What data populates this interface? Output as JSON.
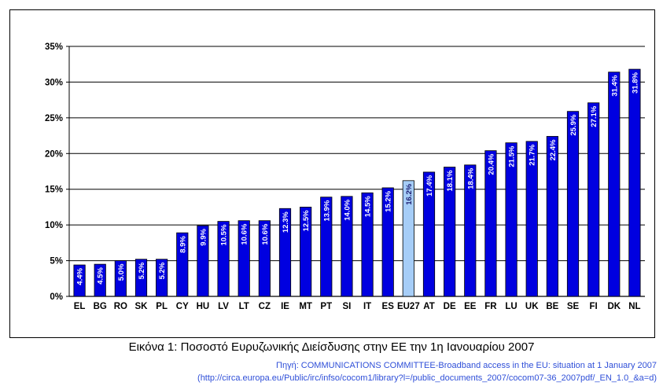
{
  "chart_data": {
    "type": "bar",
    "categories": [
      "EL",
      "BG",
      "RO",
      "SK",
      "PL",
      "CY",
      "HU",
      "LV",
      "LT",
      "CZ",
      "IE",
      "MT",
      "PT",
      "SI",
      "IT",
      "ES",
      "EU27",
      "AT",
      "DE",
      "EE",
      "FR",
      "LU",
      "UK",
      "BE",
      "SE",
      "FI",
      "DK",
      "NL"
    ],
    "values": [
      4.4,
      4.5,
      5.0,
      5.2,
      5.2,
      8.9,
      9.9,
      10.5,
      10.6,
      10.6,
      12.3,
      12.5,
      13.9,
      14.0,
      14.5,
      15.2,
      16.2,
      17.4,
      18.1,
      18.4,
      20.4,
      21.5,
      21.7,
      22.4,
      25.9,
      27.1,
      31.4,
      31.8
    ],
    "data_labels": [
      "4.4%",
      "4.5%",
      "5.0%",
      "5.2%",
      "5.2%",
      "8.9%",
      "9.9%",
      "10.5%",
      "10.6%",
      "10.6%",
      "12.3%",
      "12.5%",
      "13.9%",
      "14.0%",
      "14.5%",
      "15.2%",
      "16.2%",
      "17.4%",
      "18.1%",
      "18.4%",
      "20.4%",
      "21.5%",
      "21.7%",
      "22.4%",
      "25.9%",
      "27.1%",
      "31.4%",
      "31.8%"
    ],
    "ylim": [
      0,
      35
    ],
    "yticks": [
      0,
      5,
      10,
      15,
      20,
      25,
      30,
      35
    ],
    "ytick_labels": [
      "0%",
      "5%",
      "10%",
      "15%",
      "20%",
      "25%",
      "30%",
      "35%"
    ],
    "grid": true,
    "highlight_category": "EU27",
    "colors": {
      "bar": "#0000e0",
      "highlight": "#a6cdf7",
      "bar_edge": "#000000"
    }
  },
  "caption": "Εικόνα 1: Ποσοστό Ευρυζωνικής Διείσδυσης στην ΕΕ την 1η Ιανουαρίου 2007",
  "source_line1": "Πηγή: COMMUNICATIONS COMMITTEE-Broadband access in the EU: situation at 1 January 2007",
  "source_line2": "(http://circa.europa.eu/Public/irc/infso/cocom1/library?l=/public_documents_2007/cocom07-36_2007pdf/_EN_1.0_&a=d)"
}
